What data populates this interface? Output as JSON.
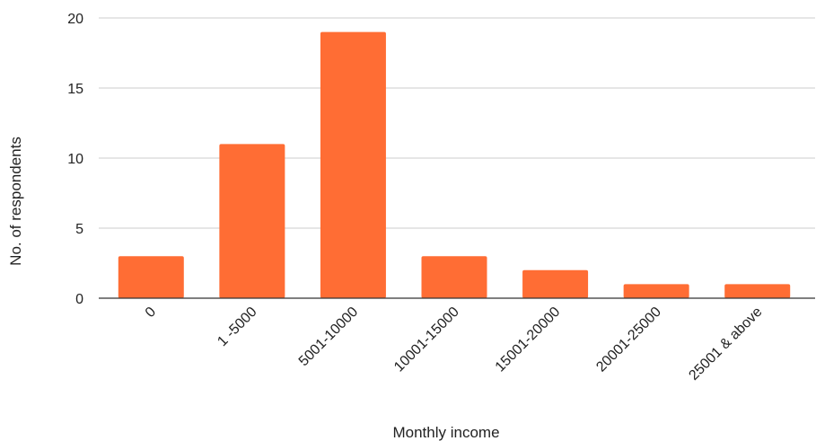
{
  "chart_data": {
    "type": "bar",
    "title": "",
    "xlabel": "Monthly income",
    "ylabel": "No. of respondents",
    "categories": [
      "0",
      "1 -5000",
      "5001-10000",
      "10001-15000",
      "15001-20000",
      "20001-25000",
      "25001 & above"
    ],
    "values": [
      3,
      11,
      19,
      3,
      2,
      1,
      1
    ],
    "ylim": [
      0,
      20
    ],
    "yticks": [
      "0",
      "5",
      "10",
      "15",
      "20"
    ],
    "grid": true,
    "bar_color": "#ff6d34",
    "gridline_color": "#cccccc",
    "axis_color": "#333333"
  }
}
